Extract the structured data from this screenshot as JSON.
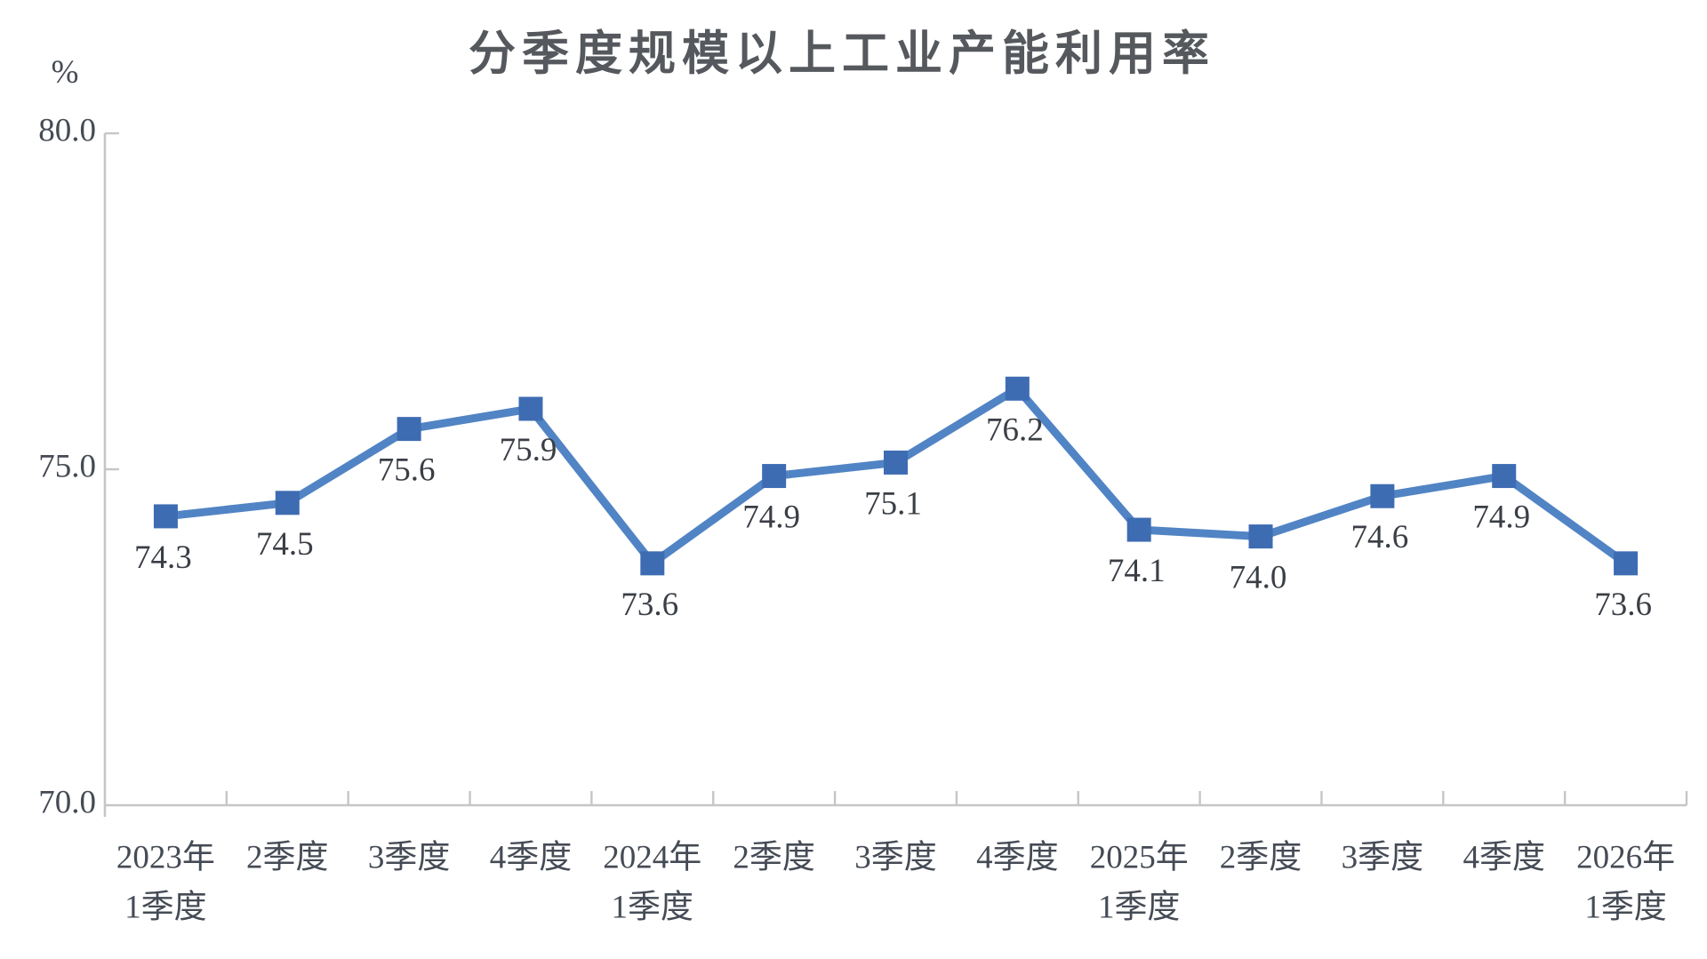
{
  "page": {
    "background": "#ffffff"
  },
  "chart_data": {
    "type": "line",
    "title": "分季度规模以上工业产能利用率",
    "unit_label": "%",
    "categories": [
      [
        "2023年",
        "1季度"
      ],
      [
        "2季度"
      ],
      [
        "3季度"
      ],
      [
        "4季度"
      ],
      [
        "2024年",
        "1季度"
      ],
      [
        "2季度"
      ],
      [
        "3季度"
      ],
      [
        "4季度"
      ],
      [
        "2025年",
        "1季度"
      ],
      [
        "2季度"
      ],
      [
        "3季度"
      ],
      [
        "4季度"
      ],
      [
        "2026年",
        "1季度"
      ]
    ],
    "values": [
      74.3,
      74.5,
      75.6,
      75.9,
      73.6,
      74.9,
      75.1,
      76.2,
      74.1,
      74.0,
      74.6,
      74.9,
      73.6
    ],
    "data_labels": [
      "74.3",
      "74.5",
      "75.6",
      "75.9",
      "73.6",
      "74.9",
      "75.1",
      "76.2",
      "74.1",
      "74.0",
      "74.6",
      "74.9",
      "73.6"
    ],
    "ylim": [
      70.0,
      80.0
    ],
    "yticks": [
      {
        "value": 80.0,
        "label": "80.0"
      },
      {
        "value": 75.0,
        "label": "75.0"
      },
      {
        "value": 70.0,
        "label": "70.0"
      }
    ],
    "grid": false,
    "legend": "none",
    "marker_shape": "square",
    "colors": {
      "line": "#5184C4",
      "marker": "#3E6CB2",
      "axis": "#C6C6C6",
      "title_text": "#55585D",
      "tick_text": "#454B55",
      "data_label_text": "#3A3E45"
    }
  }
}
